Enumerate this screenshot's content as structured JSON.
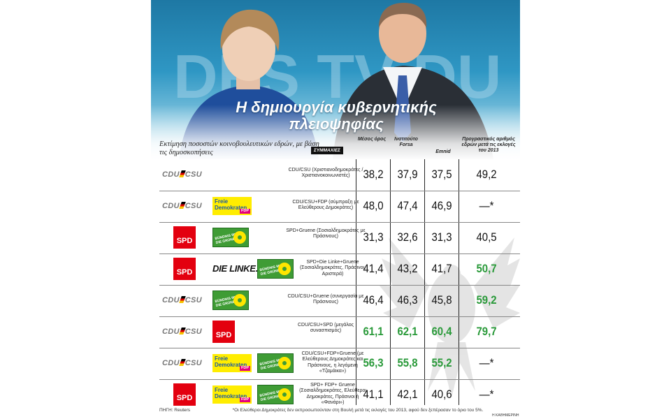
{
  "title": "Η δημιουργία κυβερνητικής πλειοψηφίας",
  "subtitle": "Εκτίμηση ποσοστών κοινοβουλευτικών εδρών, με βάση τις δημοσκοπήσεις",
  "legend_tag": "ΣΥΜΜΑΧΙΕΣ",
  "columns": {
    "average": "Μέσος όρος",
    "forsa": "Ινστιτούτο Forsa",
    "emnid": "Emnid",
    "projected": "Προγραστικός αριθμός εδρών μετά τις εκλογές του 2013"
  },
  "background_text": "DES TV DU",
  "rows": [
    {
      "parties": "CDU/CSU",
      "description": "CDU/CSU (Χριστιανοδημοκράτες /Χριστιανοκοινωνιστές)",
      "average": "38,2",
      "forsa": "37,9",
      "emnid": "37,5",
      "projected": "49,2",
      "green": false
    },
    {
      "parties": "CDU/CSU + FDP",
      "description": "CDU/CSU+FDP (σύμπραξη με Ελεύθερους Δημοκράτες)",
      "average": "48,0",
      "forsa": "47,4",
      "emnid": "46,9",
      "projected": "—*",
      "green": false
    },
    {
      "parties": "SPD + Gruene",
      "description": "SPD+Gruene (Σοσιαλδημοκράτες με Πράσινους)",
      "average": "31,3",
      "forsa": "32,6",
      "emnid": "31,3",
      "projected": "40,5",
      "green": false
    },
    {
      "parties": "SPD + Die Linke + Gruene",
      "description": "SPD+Die Linke+Gruene (Σοσιαλδημοκράτες, Πράσινοι, Αριστερά)",
      "average": "41,4",
      "forsa": "43,2",
      "emnid": "41,7",
      "projected": "50,7",
      "green": "projected"
    },
    {
      "parties": "CDU/CSU + Gruene",
      "description": "CDU/CSU+Gruene (συνεργασία με Πράσινους)",
      "average": "46,4",
      "forsa": "46,3",
      "emnid": "45,8",
      "projected": "59,2",
      "green": "projected"
    },
    {
      "parties": "CDU/CSU + SPD",
      "description": "CDU/CSU+SPD (μεγάλος συνασπισμός)",
      "average": "61,1",
      "forsa": "62,1",
      "emnid": "60,4",
      "projected": "79,7",
      "green": "all"
    },
    {
      "parties": "CDU/CSU + FDP + Gruene",
      "description": "CDU/CSU+FDP+Gruene (με Ελεύθερους Δημοκράτες και Πράσινους, η λεγόμενη «Τζαμάικα»)",
      "average": "56,3",
      "forsa": "55,8",
      "emnid": "55,2",
      "projected": "—*",
      "green": "values"
    },
    {
      "parties": "SPD + FDP + Gruene",
      "description": "SPD+ FDP+ Gruene (Σοσιαλδημοκράτες, Ελεύθεροι Δημοκράτες, Πράσινοι ή «Φανάρι»)",
      "average": "41,1",
      "forsa": "42,1",
      "emnid": "40,6",
      "projected": "—*",
      "green": false
    }
  ],
  "logos": {
    "cdu": "CDU",
    "csu": "CSU",
    "spd": "SPD",
    "linke": "DIE LINKE.",
    "fdp_line1": "Freie",
    "fdp_line2": "Demokraten",
    "fdp_tag": "FDP",
    "gruene_line1": "BÜNDNIS 90",
    "gruene_line2": "DIE GRÜNEN"
  },
  "source": "ΠΗΓΗ: Reuters",
  "footnote": "*Οι Ελεύθεροι Δημοκράτες δεν εκπροσωπούνταν στη Βουλή μετά τις εκλογές του 2013, αφού δεν ξεπέρασαν το όριο του 5%.",
  "credit": "Η ΚΑΘΗΜΕΡΙΝΗ",
  "colors": {
    "green_value": "#2a9a3a",
    "spd_red": "#e3000f",
    "fdp_yellow": "#ffed00",
    "gruene_green": "#3f9c35",
    "sky": "#2f97c4"
  }
}
